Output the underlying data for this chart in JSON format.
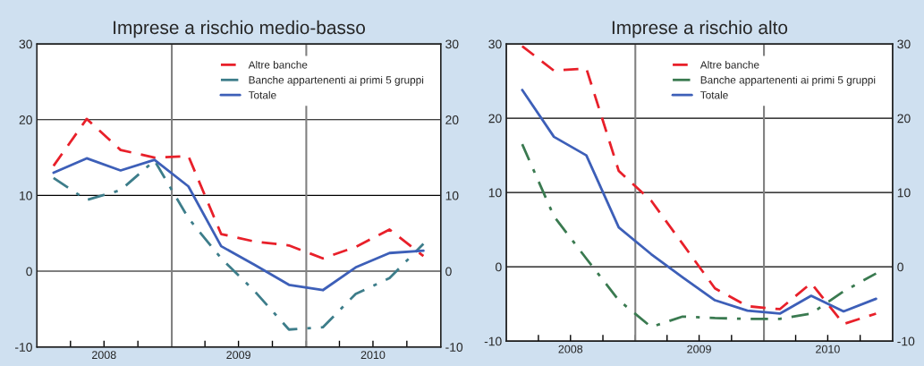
{
  "chart_data": [
    {
      "type": "line",
      "title": "Imprese a rischio medio-basso",
      "x": [
        "2008-02-15",
        "2008-05-15",
        "2008-08-15",
        "2008-11-15",
        "2009-02-15",
        "2009-05-15",
        "2009-08-15",
        "2009-11-15",
        "2010-02-15",
        "2010-05-15",
        "2010-08-15",
        "2010-11-15"
      ],
      "xlim": [
        "2008-01-01",
        "2011-01-01"
      ],
      "xticks": [
        {
          "value": "2008-04-01",
          "label": null
        },
        {
          "value": "2008-07-01",
          "label": "2008"
        },
        {
          "value": "2008-10-01",
          "label": null
        },
        {
          "value": "2009-01-01",
          "label": null
        },
        {
          "value": "2009-04-01",
          "label": null
        },
        {
          "value": "2009-07-01",
          "label": "2009"
        },
        {
          "value": "2009-10-01",
          "label": null
        },
        {
          "value": "2010-01-01",
          "label": null
        },
        {
          "value": "2010-04-01",
          "label": null
        },
        {
          "value": "2010-07-01",
          "label": "2010"
        },
        {
          "value": "2010-10-01",
          "label": null
        }
      ],
      "ylim": [
        -10,
        30
      ],
      "yticks": [
        -10,
        0,
        10,
        20,
        30
      ],
      "y2lim": [
        -10,
        30
      ],
      "y2ticks": [
        -10,
        0,
        10,
        20,
        30
      ],
      "grid": "y",
      "legend": "top right",
      "ref_lines": [
        {
          "axis": "x",
          "value": "2009-01-01",
          "color": "#808080"
        },
        {
          "axis": "x",
          "value": "2010-01-01",
          "color": "#808080"
        }
      ],
      "series": [
        {
          "name": "Altre banche",
          "color": "#e8202a",
          "line_style": "dashed",
          "values": [
            13.9,
            20.1,
            16.0,
            15.0,
            15.2,
            4.9,
            3.9,
            3.4,
            1.7,
            3.2,
            5.5,
            2.0
          ]
        },
        {
          "name": "Banche appartenenti ai primi 5 gruppi",
          "color": "#3d7d8a",
          "line_style": "dashdot",
          "values": [
            12.3,
            9.4,
            10.7,
            14.6,
            7.0,
            1.7,
            -2.7,
            -7.7,
            -7.4,
            -3.0,
            -0.9,
            3.6
          ]
        },
        {
          "name": "Totale",
          "color": "#3d5fb8",
          "line_style": "solid",
          "values": [
            13.0,
            14.9,
            13.3,
            14.7,
            11.2,
            3.3,
            0.8,
            -1.8,
            -2.5,
            0.5,
            2.4,
            2.7
          ]
        }
      ]
    },
    {
      "type": "line",
      "title": "Imprese a rischio alto",
      "x": [
        "2008-02-15",
        "2008-05-15",
        "2008-08-15",
        "2008-11-15",
        "2009-02-15",
        "2009-05-15",
        "2009-08-15",
        "2009-11-15",
        "2010-02-15",
        "2010-05-15",
        "2010-08-15",
        "2010-11-15"
      ],
      "xlim": [
        "2008-01-01",
        "2011-01-01"
      ],
      "xticks": [
        {
          "value": "2008-04-01",
          "label": null
        },
        {
          "value": "2008-07-01",
          "label": "2008"
        },
        {
          "value": "2008-10-01",
          "label": null
        },
        {
          "value": "2009-01-01",
          "label": null
        },
        {
          "value": "2009-04-01",
          "label": null
        },
        {
          "value": "2009-07-01",
          "label": "2009"
        },
        {
          "value": "2009-10-01",
          "label": null
        },
        {
          "value": "2010-01-01",
          "label": null
        },
        {
          "value": "2010-04-01",
          "label": null
        },
        {
          "value": "2010-07-01",
          "label": "2010"
        },
        {
          "value": "2010-10-01",
          "label": null
        }
      ],
      "ylim": [
        -10,
        30
      ],
      "yticks": [
        -10,
        0,
        10,
        20,
        30
      ],
      "y2lim": [
        -10,
        30
      ],
      "y2ticks": [
        -10,
        0,
        10,
        20,
        30
      ],
      "grid": "y",
      "legend": "top right",
      "ref_lines": [
        {
          "axis": "x",
          "value": "2009-01-01",
          "color": "#808080"
        },
        {
          "axis": "x",
          "value": "2010-01-01",
          "color": "#808080"
        }
      ],
      "series": [
        {
          "name": "Altre banche",
          "color": "#e8202a",
          "line_style": "dashed",
          "values": [
            29.7,
            26.4,
            26.7,
            12.9,
            8.9,
            3.1,
            -2.9,
            -5.3,
            -5.7,
            -2.2,
            -7.7,
            -6.3
          ]
        },
        {
          "name": "Banche appartenenti ai primi 5 gruppi",
          "color": "#3a7a50",
          "line_style": "dashdot",
          "values": [
            16.5,
            6.8,
            1.1,
            -4.5,
            -8.1,
            -6.7,
            -6.9,
            -7.0,
            -7.0,
            -6.3,
            -3.3,
            -0.9
          ]
        },
        {
          "name": "Totale",
          "color": "#3d5fb8",
          "line_style": "solid",
          "values": [
            23.8,
            17.5,
            15.0,
            5.3,
            1.7,
            -1.4,
            -4.5,
            -5.9,
            -6.3,
            -3.9,
            -6.0,
            -4.3
          ]
        }
      ]
    }
  ]
}
